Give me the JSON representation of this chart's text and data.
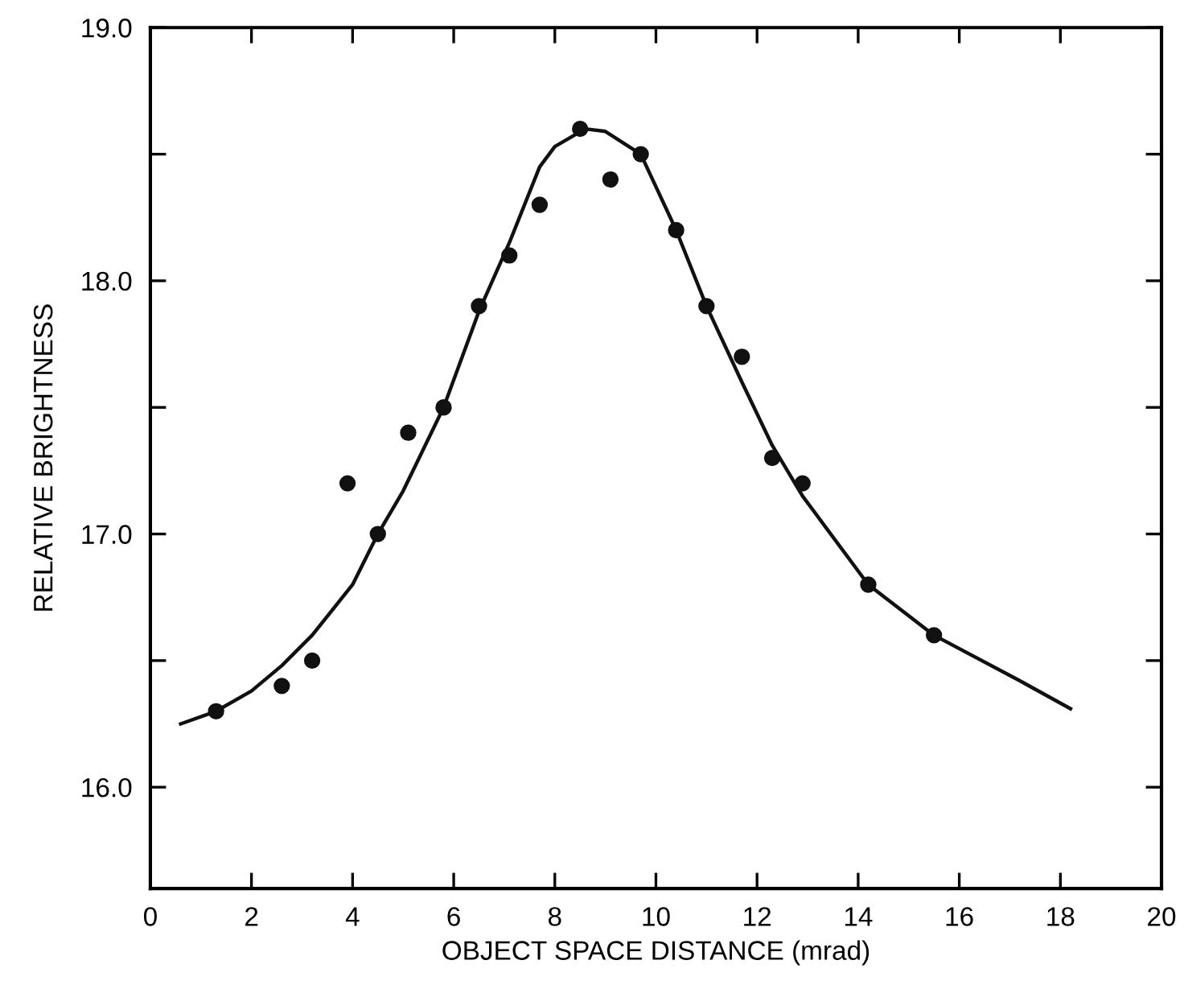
{
  "chart_data": {
    "type": "scatter",
    "xlabel": "OBJECT SPACE DISTANCE (mrad)",
    "ylabel": "RELATIVE BRIGHTNESS",
    "xlim": [
      0,
      20
    ],
    "ylim": [
      15.6,
      19.0
    ],
    "xticks": [
      0,
      2,
      4,
      6,
      8,
      10,
      12,
      14,
      16,
      18,
      20
    ],
    "yticks": [
      {
        "value": 16.0,
        "label": "16.0"
      },
      {
        "value": 16.5,
        "label": null
      },
      {
        "value": 17.0,
        "label": "17.0"
      },
      {
        "value": 17.5,
        "label": null
      },
      {
        "value": 18.0,
        "label": "18.0"
      },
      {
        "value": 18.5,
        "label": null
      },
      {
        "value": 19.0,
        "label": "19.0"
      }
    ],
    "grid": false,
    "legend": false,
    "series": [
      {
        "color": "#111111",
        "marker": "circle",
        "x": [
          1.3,
          2.6,
          3.2,
          3.9,
          4.5,
          5.1,
          5.8,
          6.5,
          7.1,
          7.7,
          8.5,
          9.1,
          9.7,
          10.4,
          11.0,
          11.7,
          12.3,
          12.9,
          14.2,
          15.5
        ],
        "values": [
          16.3,
          16.4,
          16.5,
          17.2,
          17.0,
          17.4,
          17.5,
          17.9,
          18.1,
          18.3,
          18.6,
          18.4,
          18.5,
          18.2,
          17.9,
          17.7,
          17.3,
          17.2,
          16.8,
          16.6
        ]
      },
      {
        "type": "line",
        "color": "#111111",
        "marker": "none",
        "line_style": "solid",
        "x": [
          0.6,
          1.3,
          2.0,
          2.6,
          3.2,
          4.0,
          4.5,
          5.0,
          5.8,
          6.5,
          7.1,
          7.7,
          8.0,
          8.6,
          9.0,
          9.7,
          10.4,
          11.0,
          11.7,
          12.3,
          12.9,
          14.2,
          15.5,
          17.2,
          18.2
        ],
        "values": [
          16.25,
          16.3,
          16.38,
          16.48,
          16.6,
          16.8,
          17.0,
          17.17,
          17.5,
          17.88,
          18.15,
          18.45,
          18.53,
          18.6,
          18.59,
          18.5,
          18.2,
          17.9,
          17.6,
          17.35,
          17.15,
          16.8,
          16.6,
          16.42,
          16.31
        ]
      }
    ]
  }
}
